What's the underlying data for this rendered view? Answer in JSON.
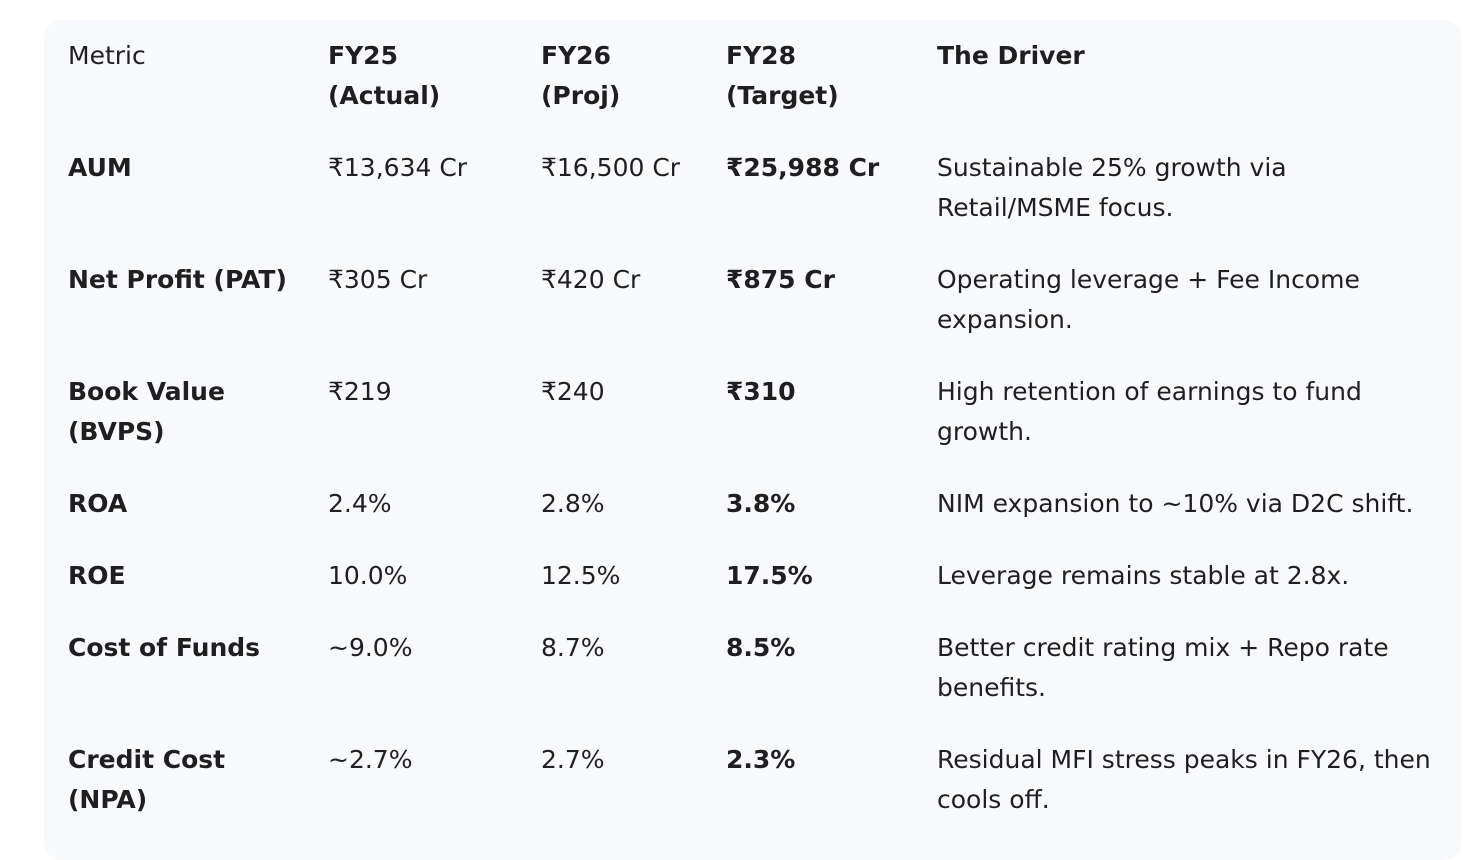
{
  "table": {
    "headers": [
      {
        "line1": "Metric",
        "line2": ""
      },
      {
        "line1": "FY25",
        "line2": "(Actual)"
      },
      {
        "line1": "FY26",
        "line2": "(Proj)"
      },
      {
        "line1": "FY28",
        "line2": "(Target)"
      },
      {
        "line1": "The Driver",
        "line2": ""
      }
    ],
    "rows": [
      {
        "metric": "AUM",
        "fy25": "₹13,634 Cr",
        "fy26": "₹16,500 Cr",
        "fy28": "₹25,988 Cr",
        "driver": "Sustainable 25% growth via Retail/MSME focus."
      },
      {
        "metric": "Net Profit (PAT)",
        "fy25": "₹305 Cr",
        "fy26": "₹420 Cr",
        "fy28": "₹875 Cr",
        "driver": "Operating leverage + Fee Income expansion."
      },
      {
        "metric": "Book Value (BVPS)",
        "fy25": "₹219",
        "fy26": "₹240",
        "fy28": "₹310",
        "driver": "High retention of earnings to fund growth."
      },
      {
        "metric": "ROA",
        "fy25": "2.4%",
        "fy26": "2.8%",
        "fy28": "3.8%",
        "driver": "NIM expansion to ~10% via D2C shift."
      },
      {
        "metric": "ROE",
        "fy25": "10.0%",
        "fy26": "12.5%",
        "fy28": "17.5%",
        "driver": "Leverage remains stable at 2.8x."
      },
      {
        "metric": "Cost of Funds",
        "fy25": "~9.0%",
        "fy26": "8.7%",
        "fy28": "8.5%",
        "driver": "Better credit rating mix + Repo rate benefits."
      },
      {
        "metric": "Credit Cost (NPA)",
        "fy25": "~2.7%",
        "fy26": "2.7%",
        "fy28": "2.3%",
        "driver": "Residual MFI stress peaks in FY26, then cools off."
      }
    ]
  }
}
